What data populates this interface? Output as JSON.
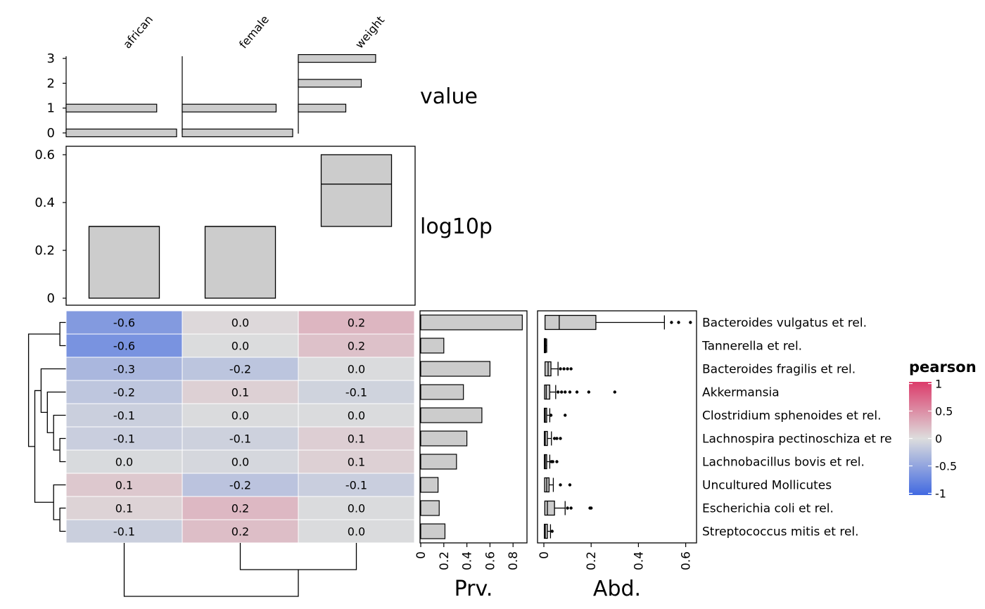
{
  "chart_data": {
    "type": "heatmap",
    "columns": [
      "african",
      "female",
      "weight"
    ],
    "rows": [
      "Bacteroides vulgatus et rel.",
      "Tannerella et rel.",
      "Bacteroides fragilis et rel.",
      "Akkermansia",
      "Clostridium sphenoides et rel.",
      "Lachnospira pectinoschiza et re",
      "Lachnobacillus bovis et rel.",
      "Uncultured Mollicutes",
      "Escherichia coli et rel.",
      "Streptococcus mitis et rel."
    ],
    "values": [
      [
        -0.6,
        0.0,
        0.2
      ],
      [
        -0.6,
        -0.0,
        0.2
      ],
      [
        -0.3,
        -0.2,
        -0.0
      ],
      [
        -0.2,
        0.1,
        -0.1
      ],
      [
        -0.1,
        -0.0,
        -0.0
      ],
      [
        -0.1,
        -0.1,
        0.1
      ],
      [
        -0.0,
        -0.0,
        0.1
      ],
      [
        0.1,
        -0.2,
        -0.1
      ],
      [
        0.1,
        0.2,
        -0.0
      ],
      [
        -0.1,
        0.2,
        -0.0
      ]
    ],
    "fill_values": [
      [
        -0.58,
        0.03,
        0.24
      ],
      [
        -0.64,
        -0.01,
        0.17
      ],
      [
        -0.33,
        -0.21,
        -0.02
      ],
      [
        -0.2,
        0.08,
        -0.09
      ],
      [
        -0.12,
        -0.02,
        -0.02
      ],
      [
        -0.13,
        -0.1,
        0.09
      ],
      [
        -0.03,
        -0.05,
        0.08
      ],
      [
        0.13,
        -0.22,
        -0.13
      ],
      [
        0.06,
        0.23,
        -0.02
      ],
      [
        -0.12,
        0.19,
        -0.02
      ]
    ],
    "legend": {
      "title": "pearson",
      "ticks": [
        "1",
        "0.5",
        "0",
        "-0.5",
        "-1"
      ],
      "tick_values": [
        1,
        0.5,
        0,
        -0.5,
        -1
      ],
      "colors": {
        "low": "#4169e1",
        "mid": "#dddddd",
        "high": "#dc3b6a"
      }
    },
    "top_value_panel": {
      "label": "value",
      "yticks": [
        "0",
        "1",
        "2",
        "3"
      ],
      "bars": [
        {
          "column": "african",
          "counts": [
            [
              0,
              1.0
            ],
            [
              1,
              0.82
            ]
          ]
        },
        {
          "column": "female",
          "counts": [
            [
              0,
              1.0
            ],
            [
              1,
              0.85
            ]
          ]
        },
        {
          "column": "weight",
          "counts": [
            [
              1,
              0.43
            ],
            [
              2,
              0.57
            ],
            [
              3,
              0.7
            ]
          ]
        }
      ]
    },
    "top_log10p_panel": {
      "label": "log10p",
      "yticks": [
        "0",
        "0.2",
        "0.4",
        "0.6"
      ],
      "ylim": [
        -0.02,
        0.63
      ],
      "boxes": [
        {
          "column": "african",
          "min": 0.0,
          "median": 0.3,
          "max": 0.3
        },
        {
          "column": "female",
          "min": 0.0,
          "median": 0.3,
          "max": 0.3
        },
        {
          "column": "weight",
          "min": 0.3,
          "median": 0.477,
          "max": 0.6
        }
      ]
    },
    "prevalence_panel": {
      "xlabel": "Prv.",
      "xticks": [
        "0",
        "0.2",
        "0.4",
        "0.6",
        "0.8"
      ],
      "xlim": [
        0,
        0.9
      ],
      "values": [
        0.88,
        0.2,
        0.6,
        0.37,
        0.53,
        0.4,
        0.31,
        0.15,
        0.16,
        0.21
      ]
    },
    "abundance_panel": {
      "xlabel": "Abd.",
      "xticks": [
        "0",
        "0.2",
        "0.4",
        "0.6"
      ],
      "xlim": [
        -0.02,
        0.65
      ],
      "boxes": [
        {
          "q1": 0.005,
          "median": 0.065,
          "q3": 0.22,
          "whisker_low": 0.0,
          "whisker_high": 0.51,
          "outliers": [
            0.54,
            0.57,
            0.62
          ]
        },
        {
          "q1": 0.002,
          "median": 0.004,
          "q3": 0.007,
          "whisker_low": 0.0,
          "whisker_high": 0.012,
          "outliers": []
        },
        {
          "q1": 0.005,
          "median": 0.018,
          "q3": 0.03,
          "whisker_low": 0.0,
          "whisker_high": 0.06,
          "outliers": [
            0.07,
            0.085,
            0.1,
            0.115
          ]
        },
        {
          "q1": 0.003,
          "median": 0.01,
          "q3": 0.025,
          "whisker_low": 0.0,
          "whisker_high": 0.05,
          "outliers": [
            0.06,
            0.075,
            0.09,
            0.11,
            0.14,
            0.19,
            0.3
          ]
        },
        {
          "q1": 0.002,
          "median": 0.006,
          "q3": 0.012,
          "whisker_low": 0.0,
          "whisker_high": 0.025,
          "outliers": [
            0.03,
            0.09
          ]
        },
        {
          "q1": 0.002,
          "median": 0.006,
          "q3": 0.015,
          "whisker_low": 0.0,
          "whisker_high": 0.032,
          "outliers": [
            0.045,
            0.055,
            0.07
          ]
        },
        {
          "q1": 0.002,
          "median": 0.006,
          "q3": 0.012,
          "whisker_low": 0.0,
          "whisker_high": 0.025,
          "outliers": [
            0.032,
            0.038,
            0.055
          ]
        },
        {
          "q1": 0.003,
          "median": 0.012,
          "q3": 0.022,
          "whisker_low": 0.0,
          "whisker_high": 0.04,
          "outliers": [
            0.07,
            0.11
          ]
        },
        {
          "q1": 0.004,
          "median": 0.015,
          "q3": 0.045,
          "whisker_low": 0.0,
          "whisker_high": 0.09,
          "outliers": [
            0.1,
            0.115,
            0.195,
            0.2
          ]
        },
        {
          "q1": 0.002,
          "median": 0.006,
          "q3": 0.015,
          "whisker_low": 0.0,
          "whisker_high": 0.028,
          "outliers": [
            0.035
          ]
        }
      ]
    },
    "row_dendrogram": {
      "leaf_order": [
        0,
        1,
        2,
        3,
        4,
        5,
        6,
        7,
        8,
        9
      ],
      "merges": [
        [
          0,
          1
        ],
        [
          5,
          6
        ],
        [
          4,
          11
        ],
        [
          3,
          12
        ],
        [
          8,
          9
        ],
        [
          2,
          13
        ],
        [
          7,
          14
        ],
        [
          16,
          15
        ],
        [
          10,
          17
        ]
      ]
    },
    "column_dendrogram": {
      "leaf_order": [
        0,
        1,
        2
      ],
      "merges": [
        [
          1,
          2
        ],
        [
          0,
          3
        ]
      ]
    }
  }
}
